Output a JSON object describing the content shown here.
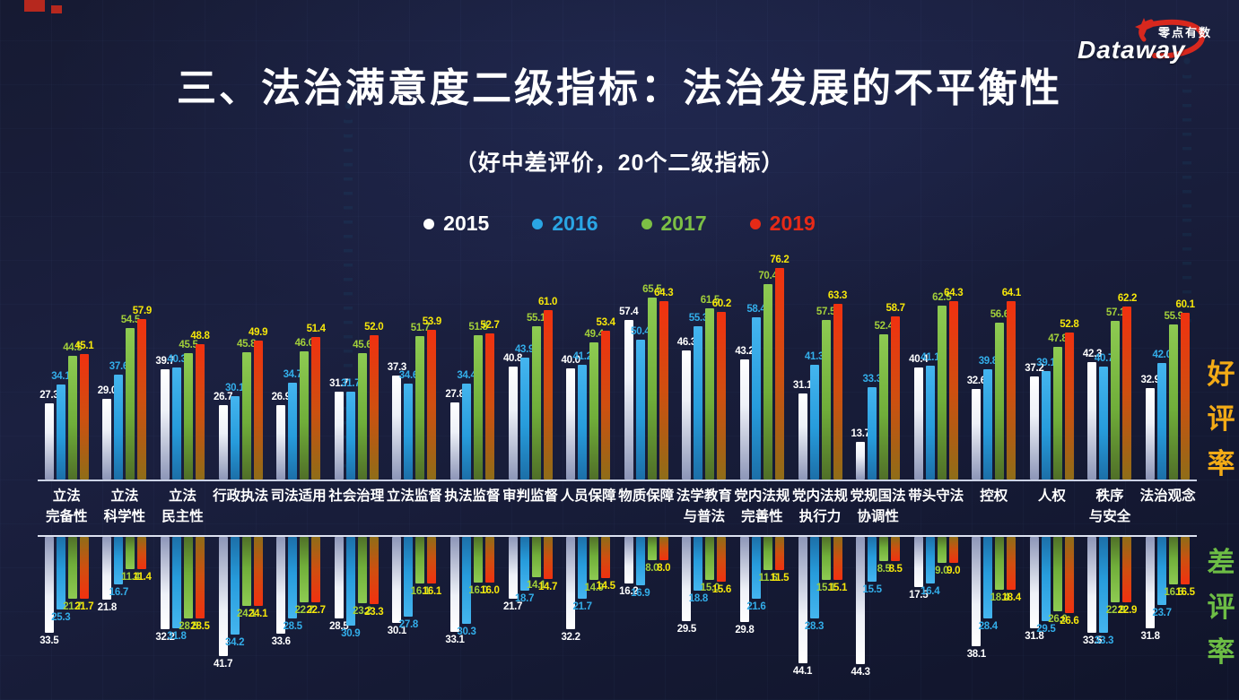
{
  "logo": {
    "brand": "Dataway",
    "brand_cn": "零点有数"
  },
  "title": "三、法治满意度二级指标：法治发展的不平衡性",
  "subtitle": "（好中差评价，20个二级指标）",
  "legend": [
    {
      "name": "2015",
      "color": "#ffffff"
    },
    {
      "name": "2016",
      "color": "#2aa5e4"
    },
    {
      "name": "2017",
      "color": "#7cbf45"
    },
    {
      "name": "2019",
      "color": "#e62a17"
    }
  ],
  "side_labels": {
    "positive": "好评率",
    "negative": "差评率",
    "positive_color": "#f3ab16",
    "negative_color": "#6dbd45"
  },
  "chart_data": {
    "type": "bar",
    "title": "法治满意度二级指标（好中差评价，20个二级指标）",
    "legend_position": "top",
    "grid": false,
    "categories": [
      "立法完备性",
      "立法科学性",
      "立法民主性",
      "行政执法",
      "司法适用",
      "社会治理",
      "立法监督",
      "执法监督",
      "审判监督",
      "人员保障",
      "物质保障",
      "法学教育与普法",
      "党内法规完善性",
      "党内法规执行力",
      "党规国法协调性",
      "带头守法",
      "控权",
      "人权",
      "秩序与安全",
      "法治观念"
    ],
    "category_lines": [
      [
        "立法",
        "完备性"
      ],
      [
        "立法",
        "科学性"
      ],
      [
        "立法",
        "民主性"
      ],
      [
        "行政执法",
        ""
      ],
      [
        "司法适用",
        ""
      ],
      [
        "社会治理",
        ""
      ],
      [
        "立法监督",
        ""
      ],
      [
        "执法监督",
        ""
      ],
      [
        "审判监督",
        ""
      ],
      [
        "人员保障",
        ""
      ],
      [
        "物质保障",
        ""
      ],
      [
        "法学教育",
        "与普法"
      ],
      [
        "党内法规",
        "完善性"
      ],
      [
        "党内法规",
        "执行力"
      ],
      [
        "党规国法",
        "协调性"
      ],
      [
        "带头守法",
        ""
      ],
      [
        "控权",
        ""
      ],
      [
        "人权",
        ""
      ],
      [
        "秩序",
        "与安全"
      ],
      [
        "法治观念",
        ""
      ]
    ],
    "panels": [
      {
        "name": "好评率",
        "direction": "up",
        "ylim": [
          0,
          80
        ],
        "series": [
          {
            "name": "2015",
            "values": [
              27.3,
              29.0,
              39.7,
              26.7,
              26.9,
              31.7,
              37.3,
              27.8,
              40.8,
              40.0,
              57.4,
              46.3,
              43.2,
              31.1,
              13.7,
              40.4,
              32.6,
              37.2,
              42.3,
              32.9
            ]
          },
          {
            "name": "2016",
            "values": [
              34.1,
              37.6,
              40.3,
              30.1,
              34.7,
              31.7,
              34.6,
              34.4,
              43.9,
              41.2,
              50.4,
              55.3,
              58.4,
              41.3,
              33.3,
              41.1,
              39.8,
              39.1,
              40.7,
              42.0
            ]
          },
          {
            "name": "2017",
            "values": [
              44.5,
              54.5,
              45.5,
              45.8,
              46.0,
              45.6,
              51.7,
              51.8,
              55.1,
              49.4,
              65.5,
              61.5,
              70.4,
              57.5,
              52.4,
              62.5,
              56.6,
              47.8,
              57.1,
              55.9
            ]
          },
          {
            "name": "2019",
            "values": [
              45.1,
              57.9,
              48.8,
              49.9,
              51.4,
              52.0,
              53.9,
              52.7,
              61.0,
              53.4,
              64.3,
              60.2,
              76.2,
              63.3,
              58.7,
              64.3,
              64.1,
              52.8,
              62.2,
              60.1
            ]
          }
        ]
      },
      {
        "name": "差评率",
        "direction": "down",
        "ylim": [
          0,
          45
        ],
        "series": [
          {
            "name": "2015",
            "values": [
              33.5,
              21.8,
              32.2,
              41.7,
              33.6,
              28.5,
              30.1,
              33.1,
              21.7,
              32.2,
              16.2,
              29.5,
              29.8,
              44.1,
              44.3,
              17.5,
              38.1,
              31.8,
              33.5,
              31.8
            ]
          },
          {
            "name": "2016",
            "values": [
              25.3,
              16.7,
              31.8,
              34.2,
              28.5,
              30.9,
              27.8,
              30.3,
              18.7,
              21.7,
              16.9,
              18.8,
              21.6,
              28.3,
              15.5,
              16.4,
              28.4,
              29.5,
              33.3,
              23.7
            ]
          },
          {
            "name": "2017",
            "values": [
              21.7,
              11.4,
              28.5,
              24.1,
              22.7,
              23.2,
              16.1,
              16.0,
              14.1,
              14.9,
              8.0,
              15.0,
              11.5,
              15.1,
              8.5,
              9.0,
              18.4,
              26.0,
              22.9,
              16.5
            ]
          },
          {
            "name": "2019",
            "values": [
              21.7,
              11.4,
              28.5,
              24.1,
              22.7,
              23.3,
              16.1,
              16.0,
              14.7,
              14.5,
              8.0,
              15.6,
              11.5,
              15.1,
              8.5,
              9.0,
              18.4,
              26.6,
              22.9,
              16.5
            ]
          }
        ]
      }
    ],
    "value_label_colors": {
      "2015": "#ffffff",
      "2016": "#33aeea",
      "2017": "#a2cf3a",
      "2019": "#f6e70a"
    }
  }
}
